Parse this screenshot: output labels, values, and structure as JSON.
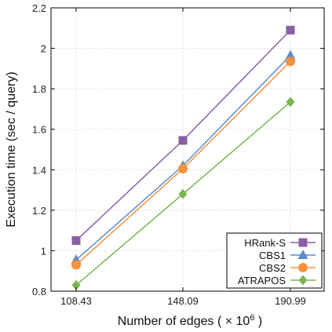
{
  "chart_data": {
    "type": "line",
    "title": "",
    "xlabel": "Number of edges ( × 10",
    "xlabel_superscript": "6",
    "xlabel_suffix": " )",
    "ylabel": "Execution time (sec / query)",
    "categories": [
      "108.43",
      "148.09",
      "190.99"
    ],
    "ylim": [
      0.8,
      2.2
    ],
    "yticks": [
      "0.8",
      "1",
      "1.2",
      "1.4",
      "1.6",
      "1.8",
      "2",
      "2.2"
    ],
    "grid": true,
    "legend_position": "bottom-right",
    "series": [
      {
        "name": "HRank-S",
        "values": [
          1.05,
          1.545,
          2.09
        ],
        "color": "#8a5fa6",
        "marker": "square"
      },
      {
        "name": "CBS1",
        "values": [
          0.955,
          1.42,
          1.965
        ],
        "color": "#5f8cc7",
        "marker": "triangle"
      },
      {
        "name": "CBS2",
        "values": [
          0.93,
          1.405,
          1.935
        ],
        "color": "#f5923e",
        "marker": "circle"
      },
      {
        "name": "ATRAPOS",
        "values": [
          0.83,
          1.28,
          1.735
        ],
        "color": "#7ab54e",
        "marker": "diamond"
      }
    ]
  }
}
